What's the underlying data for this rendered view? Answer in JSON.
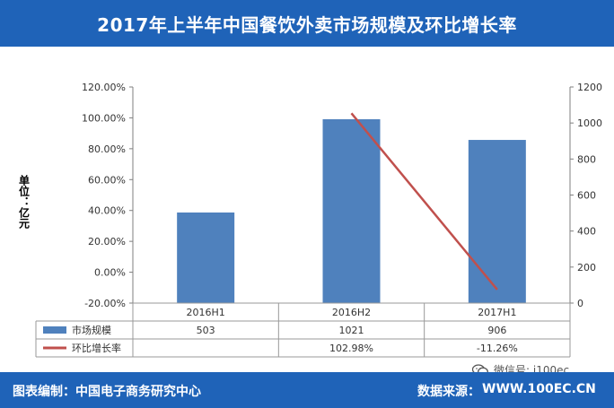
{
  "title": "2017年上半年中国餐饮外卖市场规模及环比增长率",
  "unit_label": "单位：亿元",
  "footer": {
    "left": "图表编制：中国电子商务研究中心",
    "right_label": "数据来源：",
    "right_value": "WWW.100EC.CN"
  },
  "watermark": "微信号: i100ec",
  "colors": {
    "bar": "#4f81bd",
    "line": "#c0504d",
    "band": "#1f63b8"
  },
  "chart_data": {
    "type": "bar",
    "categories": [
      "2016H1",
      "2016H2",
      "2017H1"
    ],
    "series": [
      {
        "name": "市场规模",
        "type": "bar",
        "axis": "right",
        "values": [
          503,
          1021,
          906
        ],
        "labels": [
          "503",
          "1021",
          "906"
        ]
      },
      {
        "name": "环比增长率",
        "type": "line",
        "axis": "left",
        "values": [
          null,
          102.98,
          -11.26
        ],
        "labels": [
          "",
          "102.98%",
          "-11.26%"
        ]
      }
    ],
    "left_axis": {
      "min": -20,
      "max": 120,
      "step": 20,
      "ticks": [
        "-20.00%",
        "0.00%",
        "20.00%",
        "40.00%",
        "60.00%",
        "80.00%",
        "100.00%",
        "120.00%"
      ]
    },
    "right_axis": {
      "min": 0,
      "max": 1200,
      "step": 200,
      "ticks": [
        "0",
        "200",
        "400",
        "600",
        "800",
        "1000",
        "1200"
      ]
    },
    "grid": false,
    "legend": "bottom-table"
  }
}
